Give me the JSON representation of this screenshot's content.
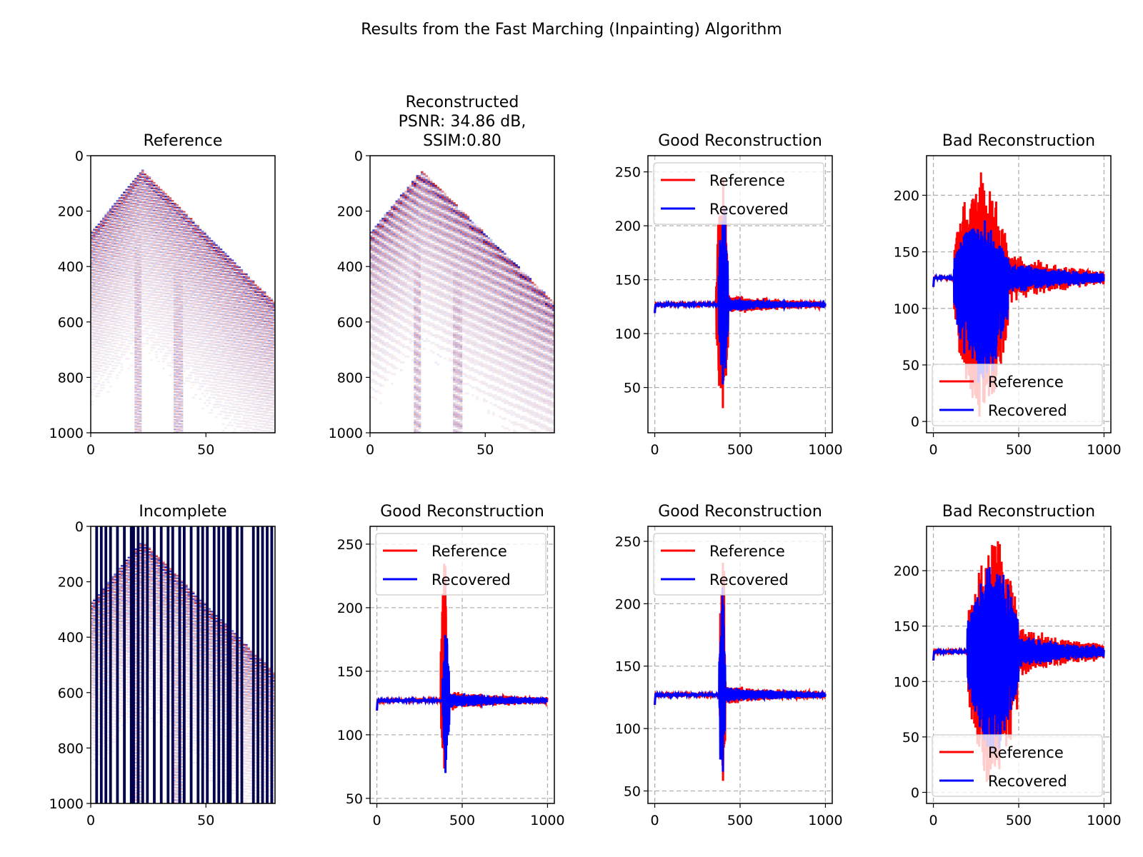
{
  "figure": {
    "suptitle": "Results from the Fast Marching (Inpainting) Algorithm"
  },
  "colors": {
    "reference": "#ff0000",
    "recovered": "#0000ff",
    "grid": "#b0b0b0",
    "mask": "#00004d"
  },
  "chart_data": [
    {
      "type": "heatmap",
      "title": "Reference",
      "xlabel": "",
      "ylabel": "",
      "xlim": [
        0,
        80
      ],
      "ylim": [
        1000,
        0
      ],
      "xticks": [
        "0",
        "50"
      ],
      "yticks": [
        "0",
        "200",
        "400",
        "600",
        "800",
        "1000"
      ],
      "colormap": "seismic",
      "shows": "seismic shot gather, 80 traces x 1000 samples"
    },
    {
      "type": "heatmap",
      "title": "Reconstructed\nPSNR: 34.86 dB,\nSSIM:0.80",
      "title_lines": [
        "Reconstructed",
        "PSNR: 34.86 dB,",
        "SSIM:0.80"
      ],
      "xlabel": "",
      "ylabel": "",
      "xlim": [
        0,
        80
      ],
      "ylim": [
        1000,
        0
      ],
      "xticks": [
        "0",
        "50"
      ],
      "yticks": [
        "0",
        "200",
        "400",
        "600",
        "800",
        "1000"
      ],
      "colormap": "seismic",
      "psnr_db": 34.86,
      "ssim": 0.8
    },
    {
      "type": "line",
      "title": "Good Reconstruction",
      "xlim": [
        -40,
        1040
      ],
      "ylim": [
        8,
        265
      ],
      "xticks": [
        0,
        500,
        1000
      ],
      "yticks": [
        50,
        100,
        150,
        200,
        250
      ],
      "grid": true,
      "legend": "upper-left",
      "series": [
        {
          "name": "Reference",
          "color": "#ff0000",
          "baseline": 127,
          "event_x": 360,
          "event_width": 70,
          "min": 20,
          "max": 256,
          "coda_amplitude": 6
        },
        {
          "name": "Recovered",
          "color": "#0000ff",
          "baseline": 127,
          "event_x": 375,
          "event_width": 55,
          "min": 48,
          "max": 236,
          "coda_amplitude": 4
        }
      ]
    },
    {
      "type": "line",
      "title": "Bad Reconstruction",
      "xlim": [
        -40,
        1040
      ],
      "ylim": [
        -10,
        235
      ],
      "xticks": [
        0,
        500,
        1000
      ],
      "yticks": [
        0,
        50,
        100,
        150,
        200
      ],
      "grid": true,
      "legend": "lower-left",
      "series": [
        {
          "name": "Reference",
          "color": "#ff0000",
          "baseline": 127,
          "event_x": 120,
          "event_width": 320,
          "min": 0,
          "max": 222,
          "coda_amplitude": 15
        },
        {
          "name": "Recovered",
          "color": "#0000ff",
          "baseline": 127,
          "event_x": 120,
          "event_width": 320,
          "min": 28,
          "max": 180,
          "coda_amplitude": 10
        }
      ]
    },
    {
      "type": "heatmap",
      "title": "Incomplete",
      "xlabel": "",
      "ylabel": "",
      "xlim": [
        0,
        80
      ],
      "ylim": [
        1000,
        0
      ],
      "xticks": [
        "0",
        "50"
      ],
      "yticks": [
        "0",
        "200",
        "400",
        "600",
        "800",
        "1000"
      ],
      "colormap": "seismic",
      "missing_traces": [
        2,
        4,
        6,
        8,
        11,
        14,
        17,
        18,
        20,
        22,
        24,
        27,
        30,
        33,
        35,
        38,
        40,
        43,
        46,
        48,
        50,
        53,
        55,
        57,
        59,
        60,
        63,
        65,
        70,
        72,
        74,
        76,
        78
      ]
    },
    {
      "type": "line",
      "title": "Good Reconstruction",
      "xlim": [
        -40,
        1040
      ],
      "ylim": [
        46,
        264
      ],
      "xticks": [
        0,
        500,
        1000
      ],
      "yticks": [
        50,
        100,
        150,
        200,
        250
      ],
      "grid": true,
      "legend": "upper-left",
      "series": [
        {
          "name": "Reference",
          "color": "#ff0000",
          "baseline": 127,
          "event_x": 375,
          "event_width": 40,
          "min": 52,
          "max": 258,
          "coda_amplitude": 5
        },
        {
          "name": "Recovered",
          "color": "#0000ff",
          "baseline": 127,
          "event_x": 385,
          "event_width": 40,
          "min": 62,
          "max": 194,
          "coda_amplitude": 4
        }
      ]
    },
    {
      "type": "line",
      "title": "Good Reconstruction",
      "xlim": [
        -40,
        1040
      ],
      "ylim": [
        40,
        262
      ],
      "xticks": [
        0,
        500,
        1000
      ],
      "yticks": [
        50,
        100,
        150,
        200,
        250
      ],
      "grid": true,
      "legend": "upper-left",
      "series": [
        {
          "name": "Reference",
          "color": "#ff0000",
          "baseline": 127,
          "event_x": 380,
          "event_width": 35,
          "min": 48,
          "max": 258,
          "coda_amplitude": 5
        },
        {
          "name": "Recovered",
          "color": "#0000ff",
          "baseline": 127,
          "event_x": 378,
          "event_width": 35,
          "min": 48,
          "max": 222,
          "coda_amplitude": 4
        }
      ]
    },
    {
      "type": "line",
      "title": "Bad Reconstruction",
      "xlim": [
        -40,
        1040
      ],
      "ylim": [
        -10,
        240
      ],
      "xticks": [
        0,
        500,
        1000
      ],
      "yticks": [
        0,
        50,
        100,
        150,
        200
      ],
      "grid": true,
      "legend": "lower-left",
      "series": [
        {
          "name": "Reference",
          "color": "#ff0000",
          "baseline": 127,
          "event_x": 200,
          "event_width": 300,
          "min": 0,
          "max": 230,
          "coda_amplitude": 15
        },
        {
          "name": "Recovered",
          "color": "#0000ff",
          "baseline": 127,
          "event_x": 200,
          "event_width": 300,
          "min": 35,
          "max": 210,
          "coda_amplitude": 10
        }
      ]
    }
  ]
}
